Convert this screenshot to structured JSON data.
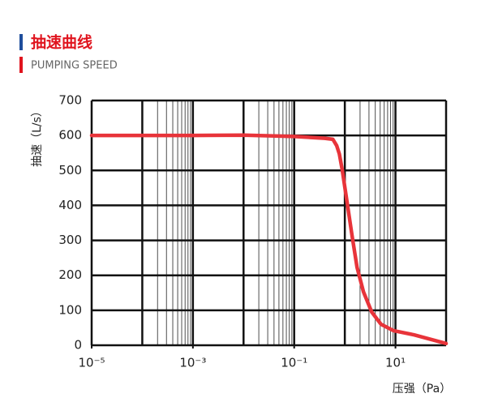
{
  "header": {
    "title": "抽速曲线",
    "subtitle": "PUMPING SPEED"
  },
  "chart_data": {
    "type": "line",
    "x_label": "压强（Pa）",
    "y_label": "抽速（L/s）",
    "log_x": true,
    "grid": true,
    "xlim": [
      1e-05,
      100
    ],
    "ylim": [
      0,
      700
    ],
    "xticks": [
      {
        "value": 1e-05,
        "label": "10⁻⁵"
      },
      {
        "value": 0.001,
        "label": "10⁻³"
      },
      {
        "value": 0.1,
        "label": "10⁻¹"
      },
      {
        "value": 10,
        "label": "10¹"
      }
    ],
    "yticks": [
      0,
      100,
      200,
      300,
      400,
      500,
      600,
      700
    ],
    "x": [
      1e-05,
      0.001,
      0.01,
      0.1,
      0.4,
      0.58,
      0.69,
      0.78,
      0.89,
      1.11,
      1.38,
      1.74,
      2.33,
      3.4,
      5.2,
      9.1,
      23,
      100
    ],
    "series": [
      {
        "name": "抽速",
        "color": "#e8343a",
        "values": [
          600,
          600,
          601,
          597,
          592,
          589,
          571,
          547,
          501,
          408,
          316,
          223,
          153,
          95,
          60,
          42,
          30,
          5
        ]
      }
    ]
  }
}
